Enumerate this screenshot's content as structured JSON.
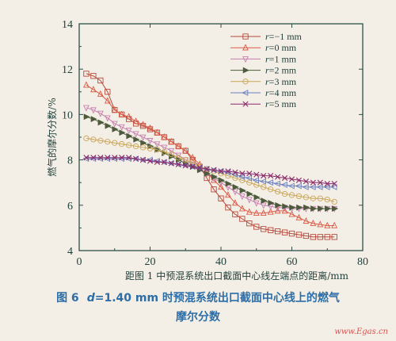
{
  "chart_data": {
    "type": "line",
    "xlabel": "距图 1 中预混系统出口截面中心线左端点的距离/mm",
    "ylabel": "燃气的摩尔分数/%",
    "xlim": [
      0,
      80
    ],
    "ylim": [
      4,
      14
    ],
    "xticks": [
      "0",
      "20",
      "40",
      "60",
      "80"
    ],
    "yticks": [
      "4",
      "6",
      "8",
      "10",
      "12",
      "14"
    ],
    "grid": false,
    "legend_position": "top-right",
    "x": [
      2,
      4,
      6,
      8,
      10,
      12,
      14,
      16,
      18,
      20,
      22,
      24,
      26,
      28,
      30,
      32,
      34,
      36,
      38,
      40,
      42,
      44,
      46,
      48,
      50,
      52,
      54,
      56,
      58,
      60,
      62,
      64,
      66,
      68,
      70,
      72
    ],
    "series": [
      {
        "name": "r=−1 mm",
        "marker": "square",
        "color": "#b5493c",
        "values": [
          11.8,
          11.7,
          11.5,
          11.0,
          10.2,
          10.0,
          9.8,
          9.6,
          9.5,
          9.35,
          9.2,
          9.0,
          8.8,
          8.6,
          8.4,
          8.0,
          7.7,
          7.2,
          6.7,
          6.3,
          5.9,
          5.6,
          5.4,
          5.2,
          5.05,
          4.95,
          4.9,
          4.85,
          4.8,
          4.75,
          4.7,
          4.65,
          4.6,
          4.6,
          4.6,
          4.6
        ]
      },
      {
        "name": "r=0 mm",
        "marker": "triangle-up",
        "color": "#d95a45",
        "values": [
          11.3,
          11.1,
          10.9,
          10.6,
          10.2,
          10.0,
          9.9,
          9.7,
          9.55,
          9.4,
          9.2,
          9.0,
          8.8,
          8.6,
          8.4,
          8.1,
          7.8,
          7.45,
          7.1,
          6.8,
          6.45,
          6.1,
          5.85,
          5.7,
          5.65,
          5.65,
          5.7,
          5.75,
          5.75,
          5.6,
          5.45,
          5.3,
          5.2,
          5.15,
          5.1,
          5.1
        ]
      },
      {
        "name": "r=1 mm",
        "marker": "triangle-down",
        "color": "#c77fb0",
        "values": [
          10.3,
          10.2,
          10.05,
          9.85,
          9.6,
          9.45,
          9.3,
          9.15,
          9.0,
          8.85,
          8.7,
          8.55,
          8.4,
          8.2,
          8.0,
          7.8,
          7.6,
          7.4,
          7.2,
          7.0,
          6.8,
          6.6,
          6.4,
          6.25,
          6.1,
          6.0,
          5.95,
          5.9,
          5.9,
          5.85,
          5.85,
          5.85,
          5.85,
          5.85,
          5.85,
          5.85
        ]
      },
      {
        "name": "r=2 mm",
        "marker": "triangle-right",
        "color": "#4d5a3c",
        "values": [
          9.9,
          9.8,
          9.65,
          9.5,
          9.35,
          9.2,
          9.05,
          8.9,
          8.75,
          8.6,
          8.45,
          8.3,
          8.15,
          8.0,
          7.85,
          7.7,
          7.55,
          7.4,
          7.25,
          7.1,
          6.95,
          6.8,
          6.65,
          6.5,
          6.35,
          6.2,
          6.1,
          6.0,
          5.95,
          5.9,
          5.9,
          5.9,
          5.85,
          5.85,
          5.85,
          5.85
        ]
      },
      {
        "name": "r=3 mm",
        "marker": "circle",
        "color": "#c9a557",
        "values": [
          8.95,
          8.9,
          8.85,
          8.8,
          8.75,
          8.7,
          8.65,
          8.6,
          8.55,
          8.5,
          8.45,
          8.35,
          8.25,
          8.1,
          8.0,
          7.85,
          7.7,
          7.6,
          7.5,
          7.4,
          7.3,
          7.2,
          7.1,
          7.0,
          6.9,
          6.8,
          6.7,
          6.6,
          6.5,
          6.45,
          6.4,
          6.35,
          6.3,
          6.3,
          6.25,
          6.15
        ]
      },
      {
        "name": "r=4 mm",
        "marker": "triangle-left",
        "color": "#6b7fc0",
        "values": [
          8.05,
          8.05,
          8.05,
          8.05,
          8.05,
          8.05,
          8.05,
          8.05,
          8.0,
          8.0,
          7.95,
          7.9,
          7.85,
          7.8,
          7.75,
          7.7,
          7.65,
          7.6,
          7.55,
          7.5,
          7.45,
          7.35,
          7.25,
          7.2,
          7.1,
          7.05,
          7.0,
          6.95,
          6.9,
          6.85,
          6.85,
          6.8,
          6.8,
          6.8,
          6.8,
          6.8
        ]
      },
      {
        "name": "r=5 mm",
        "marker": "x",
        "color": "#8a2a6a",
        "values": [
          8.1,
          8.1,
          8.1,
          8.1,
          8.1,
          8.1,
          8.1,
          8.05,
          8.0,
          7.95,
          7.9,
          7.9,
          7.85,
          7.8,
          7.75,
          7.7,
          7.65,
          7.6,
          7.55,
          7.5,
          7.5,
          7.45,
          7.4,
          7.4,
          7.35,
          7.3,
          7.3,
          7.25,
          7.2,
          7.15,
          7.1,
          7.05,
          7.0,
          7.0,
          6.95,
          6.95
        ]
      }
    ]
  },
  "legend": {
    "label_prefix": "r",
    "items": [
      "=−1 mm",
      "=0 mm",
      "=1 mm",
      "=2 mm",
      "=3 mm",
      "=4 mm",
      "=5 mm"
    ]
  },
  "caption": {
    "figure_no": "图 6",
    "variable": "d",
    "line1_rest": "=1.40 mm 时预混系统出口截面中心线上的燃气",
    "line2": "摩尔分数"
  },
  "watermark": "www.Egas.cn"
}
